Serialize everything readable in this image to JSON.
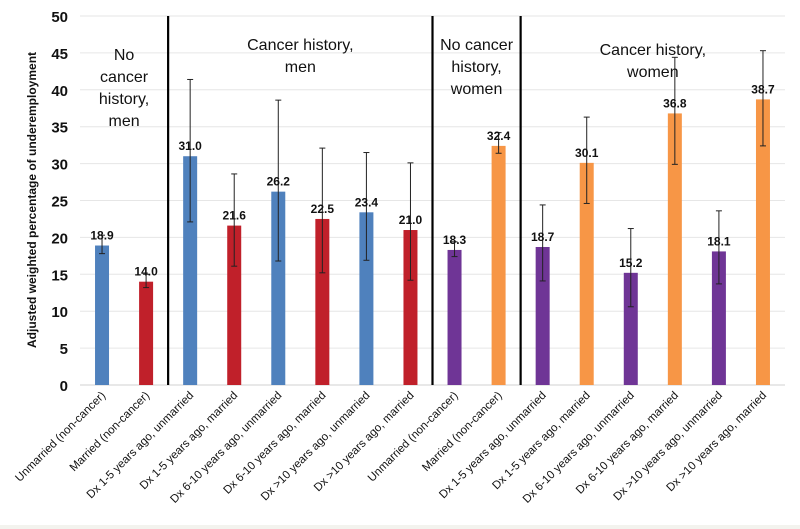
{
  "chart_data": {
    "type": "bar",
    "title": "",
    "xlabel": "",
    "ylabel": "Adjusted weighted percentage of underemployment",
    "ylim": [
      0,
      50
    ],
    "yticks": [
      0,
      5,
      10,
      15,
      20,
      25,
      30,
      35,
      40,
      45,
      50
    ],
    "grid": true,
    "categories": [
      "Unmarried (non-cancer)",
      "Married (non-cancer)",
      "Dx 1-5 years ago, unmarried",
      "Dx 1-5 years ago, married",
      "Dx 6-10 years ago, unmarried",
      "Dx 6-10 years ago, married",
      "Dx >10 years ago, unmarried",
      "Dx >10 years ago, married",
      "Unmarried (non-cancer)",
      "Married (non-cancer)",
      "Dx 1-5 years ago, unmarried",
      "Dx 1-5 years ago, married",
      "Dx 6-10 years ago, unmarried",
      "Dx 6-10 years ago, married",
      "Dx >10 years ago, unmarried",
      "Dx >10 years ago, married"
    ],
    "values": [
      18.9,
      14.0,
      31.0,
      21.6,
      26.2,
      22.5,
      23.4,
      21.0,
      18.3,
      32.4,
      18.7,
      30.1,
      15.2,
      36.8,
      18.1,
      38.7
    ],
    "value_labels": [
      "18.9",
      "14.0",
      "31.0",
      "21.6",
      "26.2",
      "22.5",
      "23.4",
      "21.0",
      "18.3",
      "32.4",
      "18.7",
      "30.1",
      "15.2",
      "36.8",
      "18.1",
      "38.7"
    ],
    "error_low": [
      17.8,
      13.2,
      22.1,
      16.1,
      16.8,
      15.2,
      16.9,
      14.2,
      17.4,
      31.4,
      14.1,
      24.6,
      10.6,
      29.9,
      13.7,
      32.4
    ],
    "error_high": [
      20.3,
      15.0,
      41.4,
      28.6,
      38.6,
      32.1,
      31.5,
      30.1,
      19.4,
      34.2,
      24.4,
      36.3,
      21.2,
      44.4,
      23.6,
      45.3
    ],
    "bar_colors": [
      "#4f81bd",
      "#c0202a",
      "#4f81bd",
      "#c0202a",
      "#4f81bd",
      "#c0202a",
      "#4f81bd",
      "#c0202a",
      "#6f3596",
      "#f79646",
      "#6f3596",
      "#f79646",
      "#6f3596",
      "#f79646",
      "#6f3596",
      "#f79646"
    ],
    "groups": [
      {
        "label_lines": [
          "No",
          "cancer",
          "history,",
          "men"
        ],
        "start": 0,
        "end": 1
      },
      {
        "label_lines": [
          "Cancer history,",
          "men"
        ],
        "start": 2,
        "end": 7
      },
      {
        "label_lines": [
          "No cancer",
          "history,",
          "women"
        ],
        "start": 8,
        "end": 9
      },
      {
        "label_lines": [
          "Cancer history,",
          "women"
        ],
        "start": 10,
        "end": 15
      }
    ],
    "group_dividers_after": [
      1,
      7,
      9
    ]
  }
}
